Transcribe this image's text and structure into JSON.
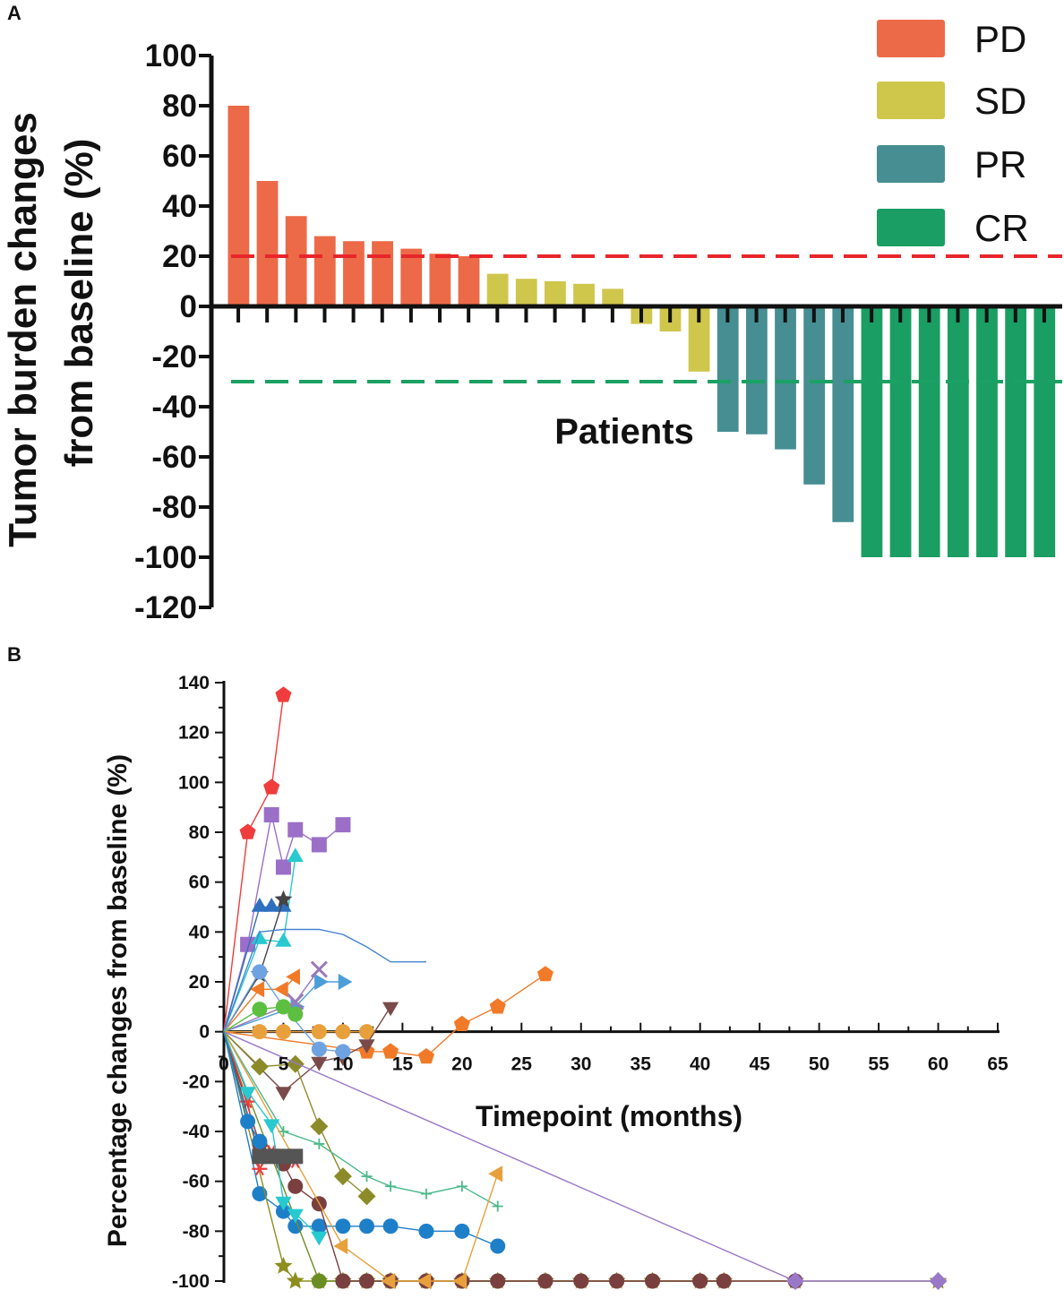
{
  "chart_data": [
    {
      "panel": "A",
      "type": "bar",
      "title": "",
      "ylabel_line1": "Tumor burden changes",
      "ylabel_line2": "from baseline (%)",
      "xlabel": "Patients",
      "ylim": [
        -120,
        100
      ],
      "yticks": [
        100,
        80,
        60,
        40,
        20,
        0,
        -20,
        -40,
        -60,
        -80,
        -100,
        -120
      ],
      "threshold_lines": [
        {
          "value": 20,
          "color": "#e8262a"
        },
        {
          "value": -30,
          "color": "#1ba163"
        }
      ],
      "legend": [
        {
          "label": "PD",
          "color": "#ec6a48"
        },
        {
          "label": "SD",
          "color": "#cfc64c"
        },
        {
          "label": "PR",
          "color": "#468e92"
        },
        {
          "label": "CR",
          "color": "#1a9e63"
        }
      ],
      "values": [
        80,
        50,
        36,
        28,
        26,
        26,
        23,
        21,
        20,
        13,
        11,
        10,
        9,
        7,
        -7,
        -10,
        -26,
        -50,
        -51,
        -57,
        -71,
        -86,
        -100,
        -100,
        -100,
        -100,
        -100,
        -100,
        -100
      ],
      "response": [
        "PD",
        "PD",
        "PD",
        "PD",
        "PD",
        "PD",
        "PD",
        "PD",
        "PD",
        "SD",
        "SD",
        "SD",
        "SD",
        "SD",
        "SD",
        "SD",
        "SD",
        "PR",
        "PR",
        "PR",
        "PR",
        "PR",
        "CR",
        "CR",
        "CR",
        "CR",
        "CR",
        "CR",
        "CR"
      ]
    },
    {
      "panel": "B",
      "type": "line",
      "ylabel": "Percentage changes from baseline (%)",
      "xlabel": "Timepoint (months)",
      "xlim": [
        0,
        65
      ],
      "ylim": [
        -100,
        140
      ],
      "xticks": [
        0,
        5,
        10,
        15,
        20,
        25,
        30,
        35,
        40,
        45,
        50,
        55,
        60,
        65
      ],
      "yticks": [
        140,
        120,
        100,
        80,
        60,
        40,
        20,
        0,
        -20,
        -40,
        -60,
        -80,
        -100
      ],
      "series": [
        {
          "name": "s1",
          "color": "#ef3d3d",
          "marker": "pentagon",
          "x": [
            0,
            2,
            4,
            5
          ],
          "y": [
            0,
            80,
            98,
            135
          ]
        },
        {
          "name": "s2",
          "color": "#9b6fc8",
          "marker": "square",
          "x": [
            0,
            2,
            4,
            5,
            6,
            8,
            10
          ],
          "y": [
            0,
            35,
            87,
            66,
            81,
            75,
            83
          ]
        },
        {
          "name": "s3",
          "color": "#28c9cf",
          "marker": "triangle-up",
          "x": [
            0,
            3,
            5,
            6
          ],
          "y": [
            0,
            37,
            36,
            70
          ]
        },
        {
          "name": "s4",
          "color": "#2f6fc0",
          "marker": "triangle-up",
          "x": [
            0,
            3,
            4,
            5
          ],
          "y": [
            0,
            50,
            50,
            50
          ]
        },
        {
          "name": "s5",
          "color": "#444444",
          "marker": "star",
          "x": [
            0,
            3,
            5
          ],
          "y": [
            0,
            23,
            53
          ]
        },
        {
          "name": "s6",
          "color": "#4784cf",
          "marker": "none",
          "x": [
            0,
            3,
            5,
            8,
            10,
            12,
            14,
            17
          ],
          "y": [
            0,
            40,
            41,
            41,
            39,
            34,
            28,
            28
          ]
        },
        {
          "name": "s7",
          "color": "#f07a28",
          "marker": "pentagon",
          "x": [
            0,
            12,
            14,
            17,
            20,
            23,
            27
          ],
          "y": [
            0,
            -8,
            -8,
            -10,
            3,
            10,
            23
          ]
        },
        {
          "name": "s8",
          "color": "#f07a28",
          "marker": "triangle-left",
          "x": [
            0,
            3,
            5,
            6
          ],
          "y": [
            0,
            17,
            17,
            22
          ]
        },
        {
          "name": "s9",
          "color": "#4c9ed8",
          "marker": "triangle-right",
          "x": [
            0,
            6,
            8,
            10
          ],
          "y": [
            0,
            10,
            20,
            20
          ]
        },
        {
          "name": "s10",
          "color": "#9b7ab8",
          "marker": "x",
          "x": [
            0,
            6,
            8
          ],
          "y": [
            0,
            12,
            25
          ]
        },
        {
          "name": "s11",
          "color": "#e8a03c",
          "marker": "circle",
          "x": [
            0,
            3,
            5,
            8,
            10,
            12
          ],
          "y": [
            0,
            0,
            0,
            0,
            0,
            0
          ]
        },
        {
          "name": "s12",
          "color": "#7a4a4a",
          "marker": "triangle-down",
          "x": [
            0,
            5,
            8,
            10,
            12,
            14
          ],
          "y": [
            0,
            -24,
            -12,
            -10,
            -5,
            10
          ]
        },
        {
          "name": "s13",
          "color": "#6fa2e0",
          "marker": "circle",
          "x": [
            0,
            3,
            5,
            8,
            10
          ],
          "y": [
            0,
            24,
            10,
            -7,
            -8
          ]
        },
        {
          "name": "s14",
          "color": "#5dbf3f",
          "marker": "circle",
          "x": [
            0,
            3,
            5,
            6
          ],
          "y": [
            0,
            9,
            10,
            7
          ]
        },
        {
          "name": "s15",
          "color": "#8b8b2a",
          "marker": "diamond",
          "x": [
            0,
            3,
            6,
            8,
            10,
            12
          ],
          "y": [
            0,
            -14,
            -13,
            -38,
            -58,
            -66
          ]
        },
        {
          "name": "s16",
          "color": "#1e7fc9",
          "marker": "circle",
          "x": [
            0,
            3,
            5,
            6,
            8,
            10,
            12,
            14,
            17,
            20,
            23
          ],
          "y": [
            0,
            -65,
            -72,
            -78,
            -78,
            -78,
            -78,
            -78,
            -80,
            -80,
            -86
          ]
        },
        {
          "name": "s17",
          "color": "#4cb98a",
          "marker": "plus",
          "x": [
            0,
            5,
            8,
            12,
            14,
            17,
            20,
            23
          ],
          "y": [
            0,
            -40,
            -45,
            -58,
            -62,
            -65,
            -62,
            -70
          ]
        },
        {
          "name": "s18",
          "color": "#8e8e1f",
          "marker": "star",
          "x": [
            0,
            5,
            6,
            8,
            10,
            12,
            14,
            17,
            20,
            23,
            27,
            30,
            33,
            36,
            40,
            42,
            48,
            60
          ],
          "y": [
            0,
            -94,
            -100,
            -100,
            -100,
            -100,
            -100,
            -100,
            -100,
            -100,
            -100,
            -100,
            -100,
            -100,
            -100,
            -100,
            -100,
            -100
          ]
        },
        {
          "name": "s19",
          "color": "#6b8e23",
          "marker": "circle",
          "x": [
            0,
            8,
            10,
            12,
            14,
            17,
            20,
            23,
            27,
            30,
            33,
            36,
            40,
            42
          ],
          "y": [
            0,
            -100,
            -100,
            -100,
            -100,
            -100,
            -100,
            -100,
            -100,
            -100,
            -100,
            -100,
            -100,
            -100
          ]
        },
        {
          "name": "s20",
          "color": "#7a3f3f",
          "marker": "circle",
          "x": [
            0,
            3,
            5,
            6,
            8,
            10,
            12,
            14,
            17,
            20,
            23,
            27,
            30,
            33,
            36,
            40,
            42,
            48
          ],
          "y": [
            0,
            -45,
            -53,
            -62,
            -69,
            -100,
            -100,
            -100,
            -100,
            -100,
            -100,
            -100,
            -100,
            -100,
            -100,
            -100,
            -100,
            -100
          ]
        },
        {
          "name": "s21",
          "color": "#9a78c8",
          "marker": "diamond",
          "x": [
            0,
            48,
            60
          ],
          "y": [
            0,
            -100,
            -100
          ]
        },
        {
          "name": "s22",
          "color": "#e8a03c",
          "marker": "triangle-left",
          "x": [
            0,
            10,
            14,
            17,
            20,
            23
          ],
          "y": [
            0,
            -86,
            -100,
            -100,
            -100,
            -57
          ]
        },
        {
          "name": "s23",
          "color": "#ef3d3d",
          "marker": "asterisk",
          "x": [
            0,
            2,
            3,
            4,
            6
          ],
          "y": [
            0,
            -28,
            -55,
            -48,
            -52
          ]
        },
        {
          "name": "s24",
          "color": "#28c9cf",
          "marker": "triangle-down",
          "x": [
            0,
            2,
            4,
            5,
            6,
            8
          ],
          "y": [
            0,
            -24,
            -37,
            -68,
            -73,
            -82
          ]
        },
        {
          "name": "s25",
          "color": "#555555",
          "marker": "square",
          "x": [
            0,
            3,
            4,
            5,
            6
          ],
          "y": [
            0,
            -50,
            -50,
            -50,
            -50
          ]
        },
        {
          "name": "s26",
          "color": "#1e7fc9",
          "marker": "circle",
          "x": [
            0,
            2,
            3
          ],
          "y": [
            0,
            -36,
            -44
          ]
        }
      ]
    }
  ]
}
